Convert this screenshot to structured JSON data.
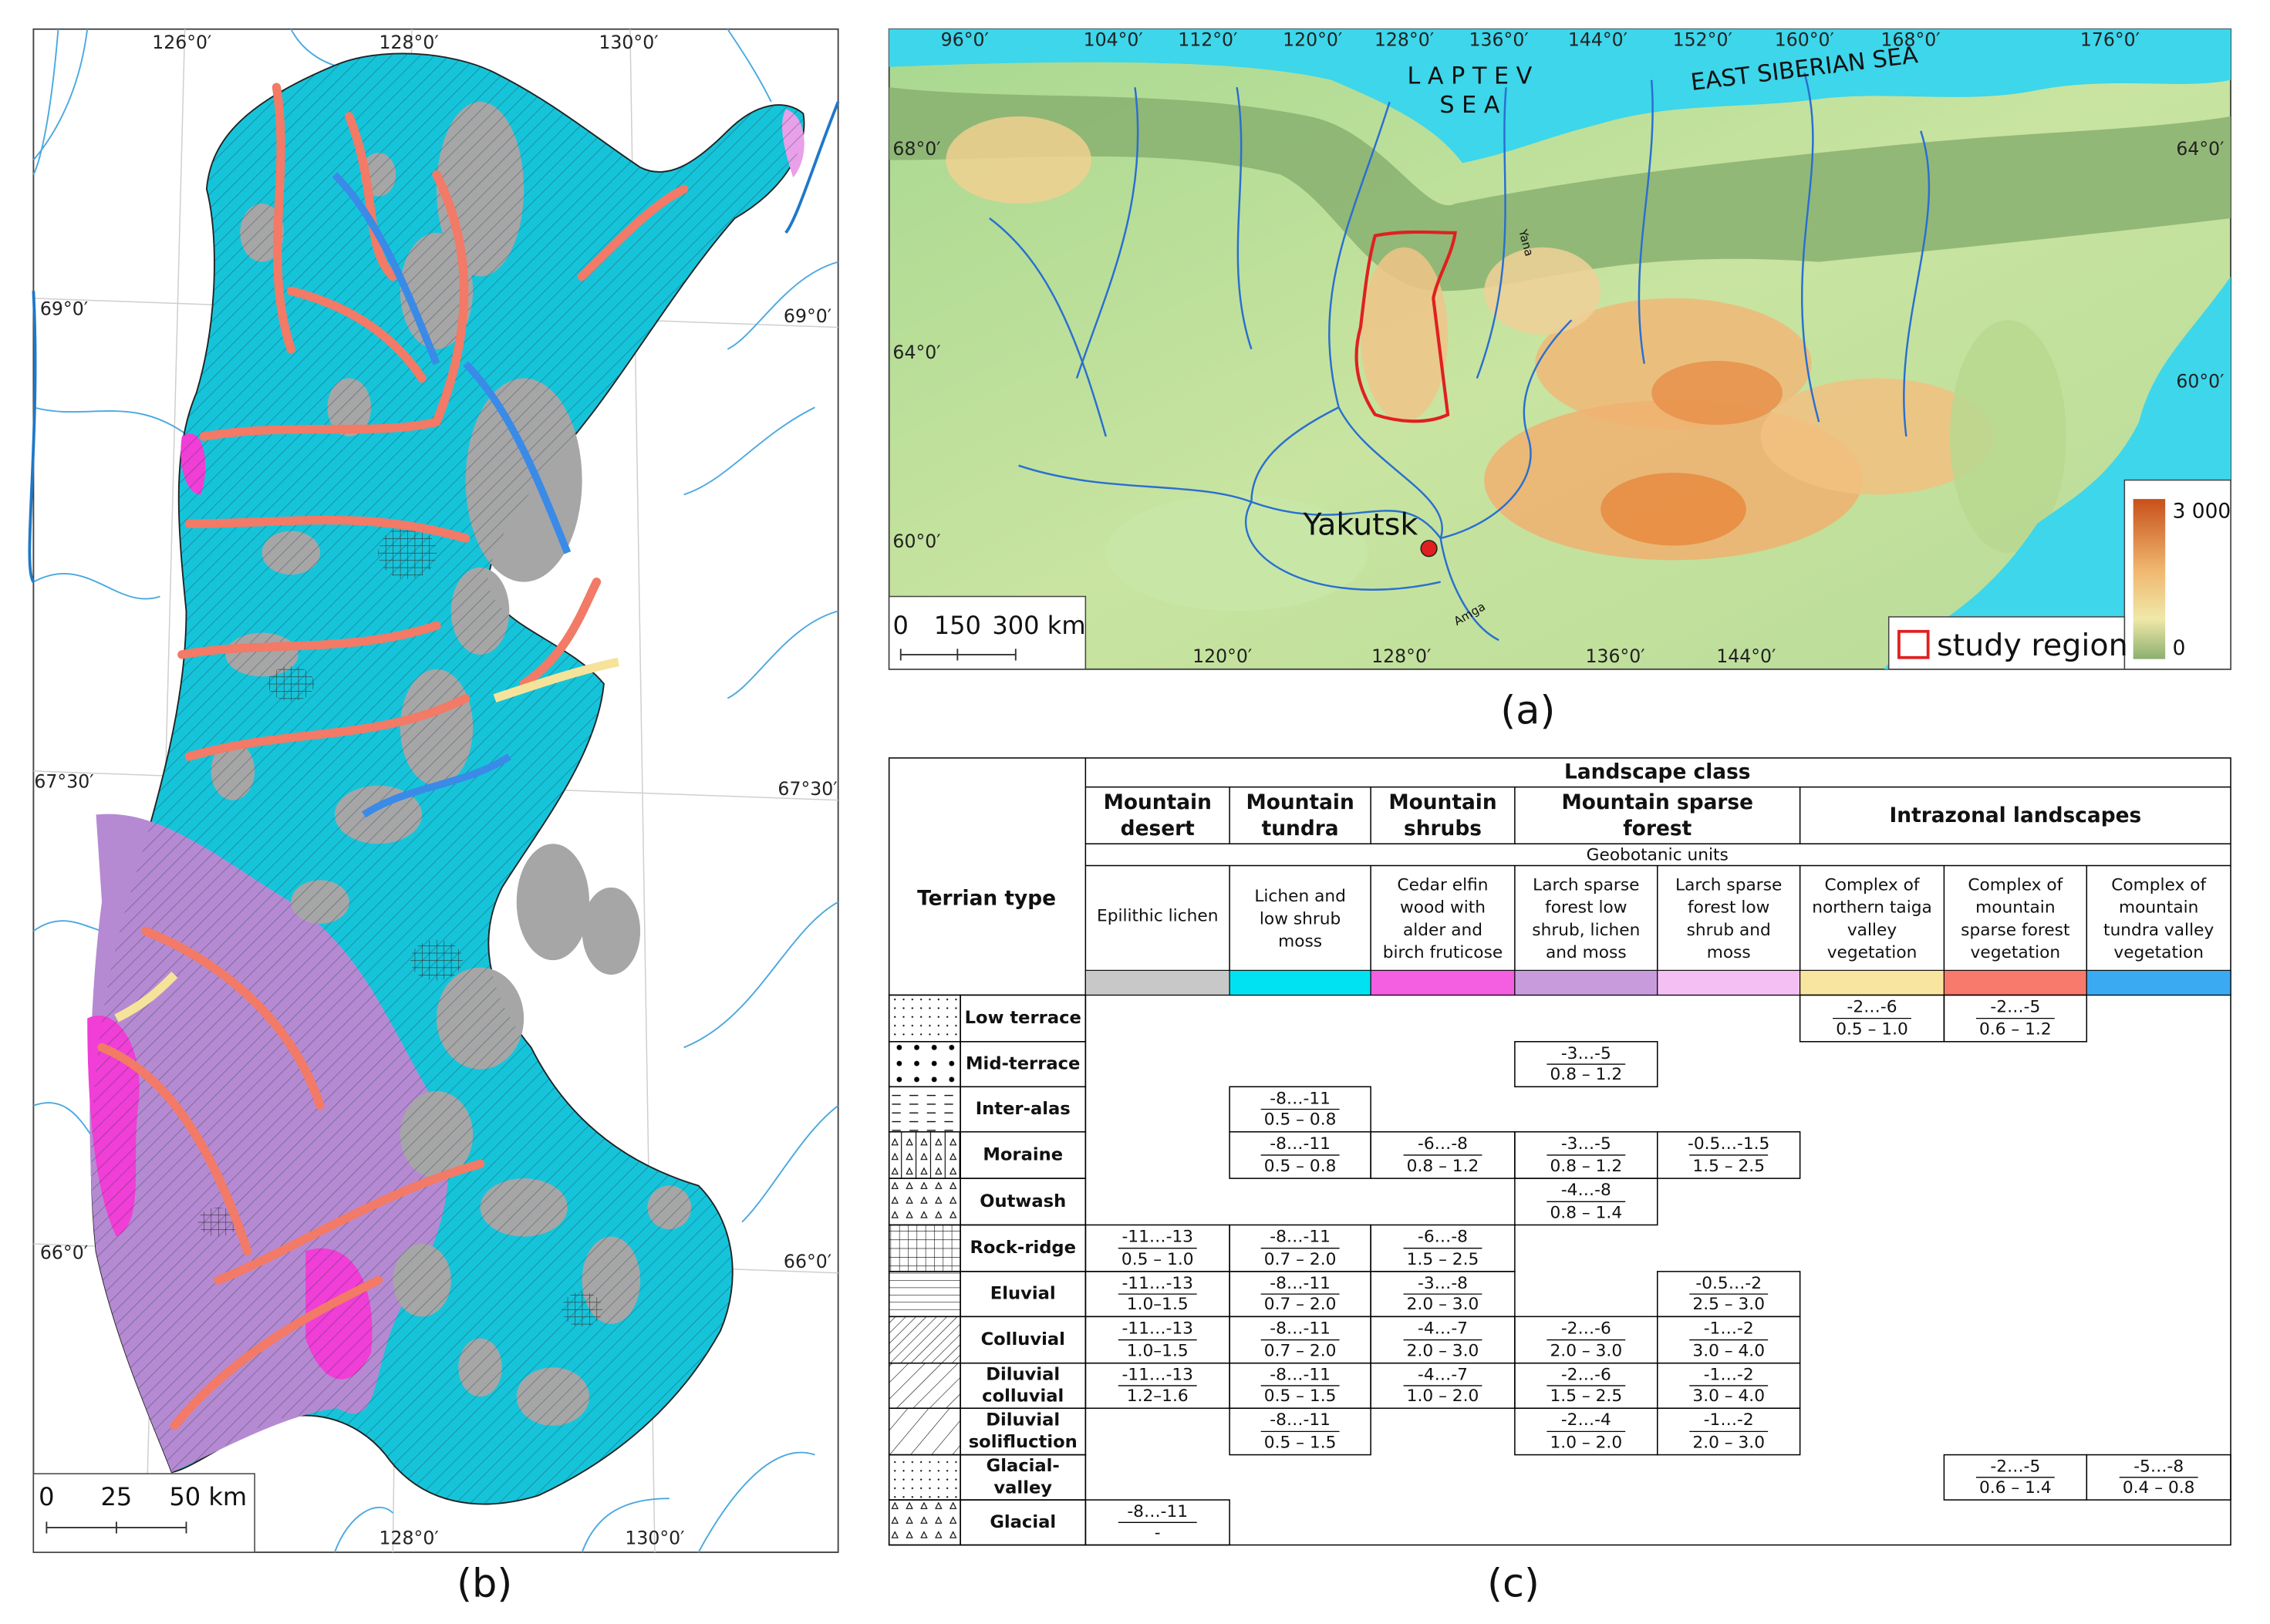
{
  "panel_a": {
    "label": "(a)",
    "lon_top": [
      "96°0′",
      "104°0′",
      "112°0′",
      "120°0′",
      "128°0′",
      "136°0′",
      "144°0′",
      "152°0′",
      "160°0′",
      "168°0′",
      "176°0′"
    ],
    "lat_left": [
      "68°0′",
      "64°0′",
      "60°0′"
    ],
    "lat_right": [
      "64°0′",
      "60°0′"
    ],
    "lon_bottom": [
      "120°0′",
      "128°0′",
      "136°0′",
      "144°0′"
    ],
    "seas": [
      [
        "L A P T E V",
        "S E A"
      ],
      [
        "EAST SIBERIAN SEA"
      ]
    ],
    "city": "Yakutsk",
    "rivers": [
      "Yana",
      "Amga"
    ],
    "elevation_legend": [
      "3 000",
      "0"
    ],
    "scale": [
      "0",
      "150",
      "300 km"
    ],
    "legend": "study region"
  },
  "panel_b": {
    "label": "(b)",
    "lon_top": [
      "126°0′",
      "128°0′",
      "130°0′"
    ],
    "lat_left": [
      "69°0′",
      "67°30′",
      "66°0′"
    ],
    "lat_right": [
      "69°0′",
      "67°30′",
      "66°0′"
    ],
    "lon_bottom": [
      "128°0′",
      "130°0′"
    ],
    "scale": [
      "0",
      "25",
      "50 km"
    ]
  },
  "panel_c": {
    "label": "(c)",
    "corner": "Terrian type",
    "landscape_class": "Landscape class",
    "geobotanic_units": "Geobotanic units",
    "classes": [
      [
        "Mountain",
        "desert"
      ],
      [
        "Mountain",
        "tundra"
      ],
      [
        "Mountain",
        "shrubs"
      ],
      [
        "Mountain sparse",
        "forest"
      ],
      [
        "Intrazonal landscapes"
      ]
    ],
    "units": [
      [
        "Epilithic lichen"
      ],
      [
        "Lichen and",
        "low shrub",
        "moss"
      ],
      [
        "Cedar elfin",
        "wood  with",
        "alder and",
        "birch fruticose"
      ],
      [
        "Larch sparse",
        "forest low",
        "shrub, lichen",
        "and moss"
      ],
      [
        "Larch sparse",
        "forest low",
        "shrub and",
        "moss"
      ],
      [
        "Complex of",
        "northern taiga",
        "valley",
        "vegetation"
      ],
      [
        "Complex of",
        "mountain",
        "sparse forest",
        "vegetation"
      ],
      [
        "Complex of",
        "mountain",
        "tundra valley",
        "vegetation"
      ]
    ],
    "unit_colors": [
      "#c8c8c8",
      "#00e2f2",
      "#f45ee0",
      "#c89cdc",
      "#f4c0f4",
      "#f8e6a0",
      "#f87a6c",
      "#3aaaf2"
    ],
    "rows": [
      {
        "terrain": [
          "Low terrace"
        ],
        "cells": [
          null,
          null,
          null,
          null,
          null,
          [
            "-2…-6",
            "0.5 – 1.0"
          ],
          [
            "-2…-5",
            "0.6 – 1.2"
          ],
          null
        ]
      },
      {
        "terrain": [
          "Mid-terrace"
        ],
        "cells": [
          null,
          null,
          null,
          [
            "-3…-5",
            "0.8 – 1.2"
          ],
          null,
          null,
          null,
          null
        ]
      },
      {
        "terrain": [
          "Inter-alas"
        ],
        "cells": [
          null,
          [
            "-8…-11",
            "0.5 – 0.8"
          ],
          null,
          null,
          null,
          null,
          null,
          null
        ]
      },
      {
        "terrain": [
          "Moraine"
        ],
        "cells": [
          null,
          [
            "-8…-11",
            "0.5 – 0.8"
          ],
          [
            "-6…-8",
            "0.8 – 1.2"
          ],
          [
            "-3…-5",
            "0.8 – 1.2"
          ],
          [
            "-0.5…-1.5",
            "1.5 – 2.5"
          ],
          null,
          null,
          null
        ]
      },
      {
        "terrain": [
          "Outwash"
        ],
        "cells": [
          null,
          null,
          null,
          [
            "-4…-8",
            "0.8 – 1.4"
          ],
          null,
          null,
          null,
          null
        ]
      },
      {
        "terrain": [
          "Rock-ridge"
        ],
        "cells": [
          [
            "-11…-13",
            "0.5 – 1.0"
          ],
          [
            "-8…-11",
            "0.7 – 2.0"
          ],
          [
            "-6…-8",
            "1.5 – 2.5"
          ],
          null,
          null,
          null,
          null,
          null
        ]
      },
      {
        "terrain": [
          "Eluvial"
        ],
        "cells": [
          [
            "-11…-13",
            "1.0–1.5"
          ],
          [
            "-8…-11",
            "0.7 – 2.0"
          ],
          [
            "-3…-8",
            "2.0 – 3.0"
          ],
          null,
          [
            "-0.5…-2",
            "2.5 – 3.0"
          ],
          null,
          null,
          null
        ]
      },
      {
        "terrain": [
          "Colluvial"
        ],
        "cells": [
          [
            "-11…-13",
            "1.0–1.5"
          ],
          [
            "-8…-11",
            "0.7 – 2.0"
          ],
          [
            "-4…-7",
            "2.0 – 3.0"
          ],
          [
            "-2…-6",
            "2.0 – 3.0"
          ],
          [
            "-1…-2",
            "3.0 – 4.0"
          ],
          null,
          null,
          null
        ]
      },
      {
        "terrain": [
          "Diluvial",
          "colluvial"
        ],
        "cells": [
          [
            "-11…-13",
            "1.2–1.6"
          ],
          [
            "-8…-11",
            "0.5 – 1.5"
          ],
          [
            "-4…-7",
            "1.0 – 2.0"
          ],
          [
            "-2…-6",
            "1.5 – 2.5"
          ],
          [
            "-1…-2",
            "3.0 – 4.0"
          ],
          null,
          null,
          null
        ]
      },
      {
        "terrain": [
          "Diluvial",
          "solifluction"
        ],
        "cells": [
          null,
          [
            "-8…-11",
            "0.5 – 1.5"
          ],
          null,
          [
            "-2…-4",
            "1.0 – 2.0"
          ],
          [
            "-1…-2",
            "2.0 – 3.0"
          ],
          null,
          null,
          null
        ]
      },
      {
        "terrain": [
          "Glacial-",
          "valley"
        ],
        "cells": [
          null,
          null,
          null,
          null,
          null,
          null,
          [
            "-2…-5",
            "0.6 – 1.4"
          ],
          [
            "-5…-8",
            "0.4 – 0.8"
          ]
        ]
      },
      {
        "terrain": [
          "Glacial"
        ],
        "cells": [
          [
            "-8…-11",
            "-"
          ],
          null,
          null,
          null,
          null,
          null,
          null,
          null
        ]
      }
    ]
  }
}
